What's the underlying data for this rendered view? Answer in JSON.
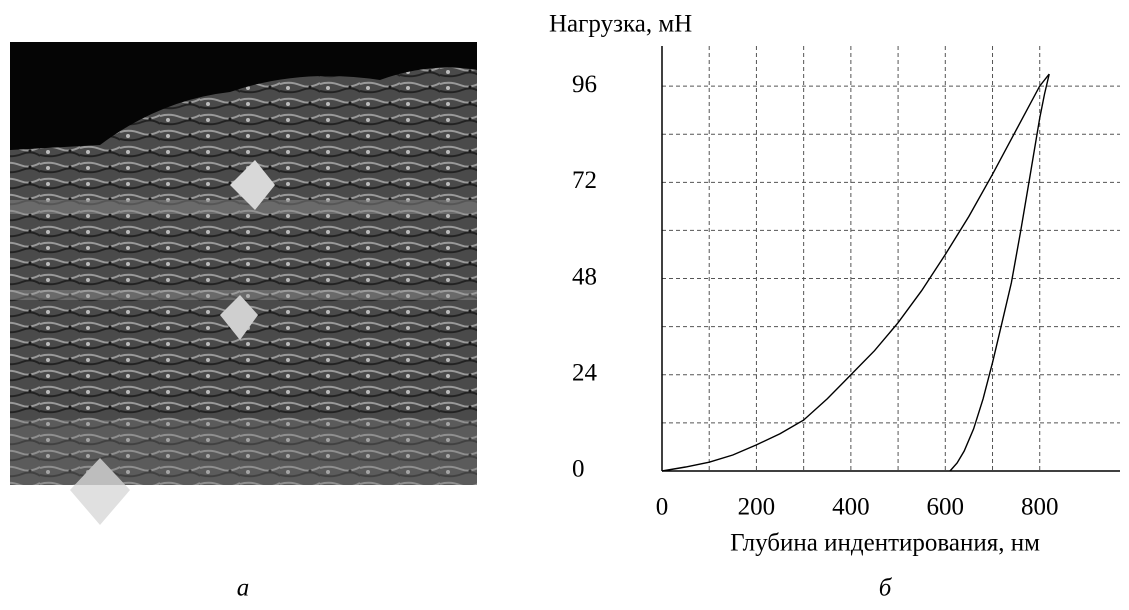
{
  "chart_data": {
    "type": "line",
    "y_label": "Нагрузка, мН",
    "x_label": "Глубина индентирования, нм",
    "xlim": [
      0,
      970
    ],
    "ylim": [
      0,
      106
    ],
    "xticks": [
      0,
      200,
      400,
      600,
      800
    ],
    "yticks": [
      0,
      24,
      48,
      72,
      96
    ],
    "x_minor_grid": [
      100,
      300,
      500,
      700
    ],
    "y_minor_grid": [
      12,
      36,
      60,
      84
    ],
    "grid": true,
    "series": [
      {
        "color": "#000000",
        "x": [
          0,
          50,
          100,
          150,
          200,
          250,
          300,
          350,
          400,
          450,
          500,
          550,
          600,
          650,
          700,
          750,
          800,
          820
        ],
        "values": [
          0,
          1,
          2.2,
          4,
          6.5,
          9.3,
          12.7,
          18,
          24,
          30,
          37,
          45,
          54,
          63.5,
          74,
          85,
          96,
          99
        ]
      },
      {
        "color": "#000000",
        "x": [
          820,
          810,
          800,
          780,
          760,
          740,
          720,
          700,
          680,
          660,
          640,
          625,
          610
        ],
        "values": [
          99,
          94,
          88,
          74,
          60,
          47,
          37,
          27,
          18,
          10.5,
          5,
          2,
          0
        ]
      }
    ]
  },
  "panel_labels": [
    "а",
    "б"
  ]
}
